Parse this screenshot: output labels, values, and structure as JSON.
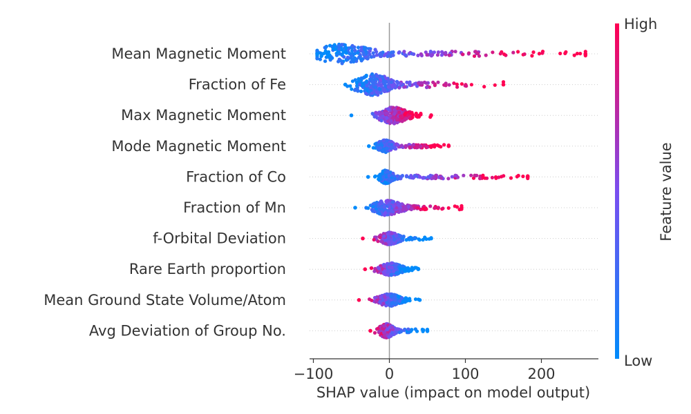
{
  "chart_data": {
    "type": "scatter",
    "subtype": "shap-beeswarm",
    "title": "",
    "xlabel": "SHAP value (impact on model output)",
    "xlim": [
      -105,
      275
    ],
    "xticks": [
      -100,
      0,
      100,
      200
    ],
    "xtick_labels": [
      "−100",
      "0",
      "100",
      "200"
    ],
    "colorbar": {
      "label": "Feature value",
      "high_label": "High",
      "low_label": "Low",
      "high_color": "#ff0052",
      "low_color": "#008bfb"
    },
    "features": [
      {
        "name": "Mean Magnetic Moment",
        "min": -95,
        "max": 258,
        "center": -62,
        "spread": 36,
        "width": 14,
        "tail": 0.55
      },
      {
        "name": "Fraction of Fe",
        "min": -58,
        "max": 150,
        "center": -22,
        "spread": 22,
        "width": 16,
        "tail": 0.35
      },
      {
        "name": "Max Magnetic Moment",
        "min": -50,
        "max": 55,
        "center": 5,
        "spread": 18,
        "width": 12,
        "tail": 0.3
      },
      {
        "name": "Mode Magnetic Moment",
        "min": -27,
        "max": 78,
        "center": -5,
        "spread": 10,
        "width": 9,
        "tail": 0.3
      },
      {
        "name": "Fraction of Co",
        "min": -28,
        "max": 182,
        "center": -4,
        "spread": 8,
        "width": 10,
        "tail": 0.35
      },
      {
        "name": "Fraction of Mn",
        "min": -45,
        "max": 95,
        "center": -3,
        "spread": 18,
        "width": 11,
        "tail": 0.3
      },
      {
        "name": "f-Orbital Deviation",
        "min": -35,
        "max": 55,
        "center": 0,
        "spread": 12,
        "width": 9,
        "tail": 0.15
      },
      {
        "name": "Rare Earth proportion",
        "min": -32,
        "max": 38,
        "center": 2,
        "spread": 14,
        "width": 9,
        "tail": 0.15
      },
      {
        "name": "Mean Ground State Volume/Atom",
        "min": -40,
        "max": 40,
        "center": 0,
        "spread": 14,
        "width": 9,
        "tail": 0.15
      },
      {
        "name": "Avg Deviation of Group No.",
        "min": -25,
        "max": 50,
        "center": -4,
        "spread": 9,
        "width": 10,
        "tail": 0.2
      }
    ]
  }
}
